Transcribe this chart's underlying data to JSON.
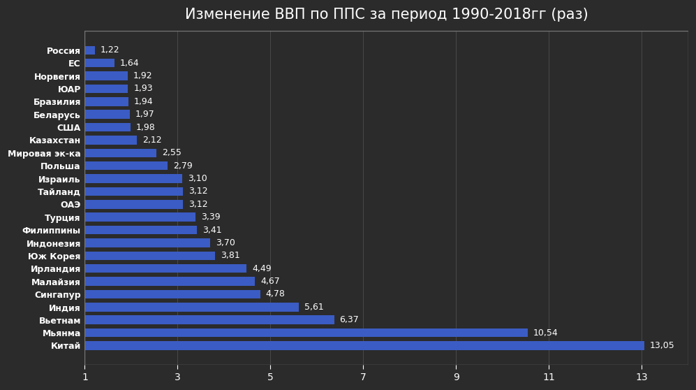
{
  "title": "Изменение ВВП по ППС за период 1990-2018гг (раз)",
  "categories": [
    "Россия",
    "ЕС",
    "Норвегия",
    "ЮАР",
    "Бразилия",
    "Беларусь",
    "США",
    "Казахстан",
    "Мировая эк-ка",
    "Польша",
    "Израиль",
    "Тайланд",
    "ОАЭ",
    "Турция",
    "Филиппины",
    "Индонезия",
    "Юж Корея",
    "Ирландия",
    "Малайзия",
    "Сингапур",
    "Индия",
    "Вьетнам",
    "Мьянма",
    "Китай"
  ],
  "values": [
    1.22,
    1.64,
    1.92,
    1.93,
    1.94,
    1.97,
    1.98,
    2.12,
    2.55,
    2.79,
    3.1,
    3.12,
    3.12,
    3.39,
    3.41,
    3.7,
    3.81,
    4.49,
    4.67,
    4.78,
    5.61,
    6.37,
    10.54,
    13.05
  ],
  "labels": [
    "1,22",
    "1,64",
    "1,92",
    "1,93",
    "1,94",
    "1,97",
    "1,98",
    "2,12",
    "2,55",
    "2,79",
    "3,10",
    "3,12",
    "3,12",
    "3,39",
    "3,41",
    "3,70",
    "3,81",
    "4,49",
    "4,67",
    "4,78",
    "5,61",
    "6,37",
    "10,54",
    "13,05"
  ],
  "bar_color": "#3B5CC4",
  "background_color": "#2b2b2b",
  "text_color": "#ffffff",
  "title_color": "#ffffff",
  "xlim": [
    1,
    14
  ],
  "xticks": [
    1,
    3,
    5,
    7,
    9,
    11,
    13
  ],
  "title_fontsize": 15,
  "label_fontsize": 9,
  "ylabel_fontsize": 9,
  "xtick_fontsize": 10
}
